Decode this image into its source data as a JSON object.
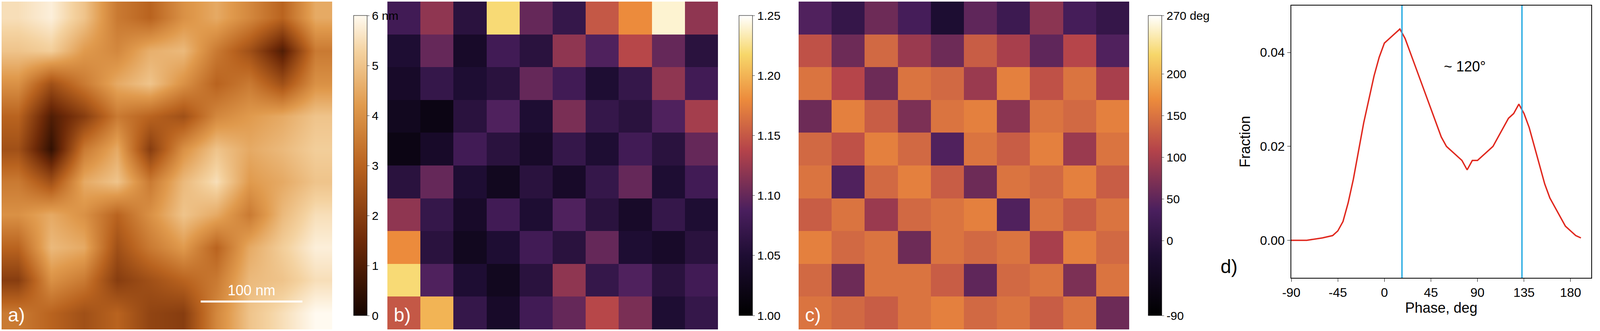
{
  "chart_data": [
    {
      "type": "heatmap",
      "title": "a)",
      "tick_labels": false,
      "xlim": [
        0,
        325
      ],
      "ylim": [
        0,
        325
      ],
      "scale_bar": {
        "label": "100 nm",
        "length": 100
      },
      "colorbar": {
        "range": [
          0,
          6
        ],
        "ticks": [
          0,
          1,
          2,
          3,
          4,
          5,
          {
            "value": 6,
            "label": "6 nm"
          }
        ]
      },
      "z": [
        [
          5.5,
          5.8,
          5.0,
          3.5,
          3.0,
          4.0,
          4.5,
          3.8,
          3.0,
          4.5
        ],
        [
          5.0,
          5.2,
          4.2,
          3.8,
          4.6,
          4.8,
          3.5,
          2.5,
          1.0,
          3.5
        ],
        [
          4.0,
          2.5,
          3.5,
          4.5,
          5.0,
          4.0,
          3.0,
          3.5,
          2.5,
          4.0
        ],
        [
          3.0,
          1.0,
          2.0,
          3.5,
          3.0,
          2.5,
          3.8,
          4.2,
          4.5,
          5.0
        ],
        [
          2.5,
          0.5,
          3.5,
          4.5,
          2.0,
          4.0,
          5.0,
          4.5,
          4.8,
          5.2
        ],
        [
          3.5,
          2.5,
          4.5,
          5.0,
          3.5,
          4.8,
          5.5,
          4.2,
          4.5,
          5.0
        ],
        [
          4.0,
          4.5,
          4.0,
          3.0,
          4.0,
          5.0,
          4.5,
          3.5,
          4.8,
          5.5
        ],
        [
          3.0,
          4.8,
          4.5,
          2.5,
          3.5,
          4.2,
          3.0,
          4.5,
          5.2,
          5.8
        ],
        [
          2.0,
          4.0,
          3.5,
          2.0,
          2.5,
          3.0,
          3.5,
          4.8,
          5.0,
          5.5
        ],
        [
          3.5,
          3.0,
          2.5,
          3.0,
          2.2,
          2.0,
          3.8,
          5.0,
          5.5,
          6.0
        ]
      ]
    },
    {
      "type": "heatmap",
      "title": "b)",
      "tick_labels": false,
      "xlim": [
        0,
        325
      ],
      "ylim": [
        0,
        325
      ],
      "colorbar": {
        "range": [
          1.0,
          1.25
        ],
        "ticks": [
          {
            "value": 1.0,
            "label": "1.00"
          },
          {
            "value": 1.05,
            "label": "1.05"
          },
          {
            "value": 1.1,
            "label": "1.10"
          },
          {
            "value": 1.15,
            "label": "1.15"
          },
          {
            "value": 1.2,
            "label": "1.20"
          },
          {
            "value": 1.25,
            "label": "1.25"
          }
        ]
      },
      "z": [
        [
          1.08,
          1.12,
          1.06,
          1.22,
          1.1,
          1.07,
          1.15,
          1.18,
          1.24,
          1.12
        ],
        [
          1.05,
          1.1,
          1.04,
          1.08,
          1.06,
          1.12,
          1.09,
          1.14,
          1.1,
          1.06
        ],
        [
          1.04,
          1.07,
          1.05,
          1.06,
          1.1,
          1.08,
          1.05,
          1.07,
          1.12,
          1.08
        ],
        [
          1.03,
          1.02,
          1.06,
          1.09,
          1.05,
          1.11,
          1.07,
          1.06,
          1.09,
          1.13
        ],
        [
          1.02,
          1.04,
          1.08,
          1.06,
          1.04,
          1.07,
          1.05,
          1.08,
          1.06,
          1.1
        ],
        [
          1.06,
          1.1,
          1.05,
          1.03,
          1.06,
          1.04,
          1.07,
          1.1,
          1.05,
          1.08
        ],
        [
          1.12,
          1.07,
          1.04,
          1.08,
          1.05,
          1.09,
          1.06,
          1.04,
          1.07,
          1.05
        ],
        [
          1.18,
          1.06,
          1.03,
          1.05,
          1.08,
          1.06,
          1.1,
          1.05,
          1.04,
          1.06
        ],
        [
          1.22,
          1.09,
          1.05,
          1.03,
          1.06,
          1.12,
          1.07,
          1.09,
          1.06,
          1.08
        ],
        [
          1.15,
          1.2,
          1.07,
          1.04,
          1.08,
          1.1,
          1.14,
          1.11,
          1.05,
          1.07
        ]
      ]
    },
    {
      "type": "heatmap",
      "title": "c)",
      "tick_labels": false,
      "xlim": [
        0,
        325
      ],
      "ylim": [
        0,
        325
      ],
      "colorbar": {
        "range": [
          -90,
          270
        ],
        "ticks": [
          -90,
          0,
          50,
          100,
          150,
          200,
          {
            "value": 270,
            "label": "270 deg"
          }
        ]
      },
      "z": [
        [
          40,
          10,
          60,
          30,
          -20,
          50,
          20,
          80,
          30,
          10
        ],
        [
          120,
          60,
          140,
          90,
          60,
          130,
          100,
          50,
          110,
          40
        ],
        [
          150,
          110,
          60,
          150,
          140,
          90,
          160,
          120,
          150,
          100
        ],
        [
          60,
          160,
          130,
          70,
          150,
          160,
          80,
          150,
          140,
          160
        ],
        [
          140,
          120,
          160,
          140,
          40,
          150,
          130,
          160,
          90,
          150
        ],
        [
          150,
          40,
          140,
          160,
          130,
          60,
          150,
          140,
          160,
          130
        ],
        [
          130,
          150,
          90,
          140,
          150,
          160,
          40,
          150,
          130,
          150
        ],
        [
          160,
          140,
          150,
          60,
          150,
          140,
          150,
          100,
          160,
          140
        ],
        [
          140,
          60,
          150,
          150,
          130,
          50,
          140,
          150,
          70,
          150
        ],
        [
          150,
          140,
          130,
          150,
          160,
          140,
          150,
          130,
          150,
          60
        ]
      ]
    },
    {
      "type": "line",
      "title": "d)",
      "xlabel": "Phase, deg",
      "ylabel": "Fraction",
      "color": "#e0281e",
      "grid": false,
      "xlim": [
        -90,
        200
      ],
      "ylim": [
        -0.008,
        0.05
      ],
      "xticks": [
        -90,
        -45,
        0,
        45,
        90,
        135,
        180
      ],
      "yticks": [
        {
          "value": 0,
          "label": "0.00"
        },
        {
          "value": 0.02,
          "label": "0.02"
        },
        {
          "value": 0.04,
          "label": "0.04"
        }
      ],
      "vlines": [
        17,
        133
      ],
      "annotations": [
        {
          "text": "~ 120°",
          "x": 78,
          "y": 0.037
        }
      ],
      "x": [
        -90,
        -75,
        -60,
        -50,
        -45,
        -40,
        -35,
        -30,
        -25,
        -20,
        -15,
        -10,
        -5,
        0,
        5,
        10,
        15,
        20,
        25,
        30,
        35,
        40,
        45,
        50,
        55,
        60,
        65,
        70,
        75,
        80,
        85,
        90,
        95,
        100,
        105,
        110,
        115,
        120,
        125,
        130,
        135,
        140,
        145,
        150,
        155,
        160,
        165,
        170,
        175,
        180,
        185,
        190
      ],
      "values": [
        0,
        0,
        0.0005,
        0.001,
        0.002,
        0.004,
        0.008,
        0.013,
        0.019,
        0.025,
        0.03,
        0.035,
        0.039,
        0.042,
        0.043,
        0.044,
        0.045,
        0.043,
        0.04,
        0.037,
        0.034,
        0.031,
        0.028,
        0.025,
        0.022,
        0.02,
        0.019,
        0.018,
        0.017,
        0.015,
        0.017,
        0.017,
        0.018,
        0.019,
        0.02,
        0.022,
        0.024,
        0.026,
        0.027,
        0.029,
        0.027,
        0.024,
        0.02,
        0.016,
        0.012,
        0.009,
        0.007,
        0.005,
        0.003,
        0.002,
        0.001,
        0.0005
      ]
    }
  ]
}
